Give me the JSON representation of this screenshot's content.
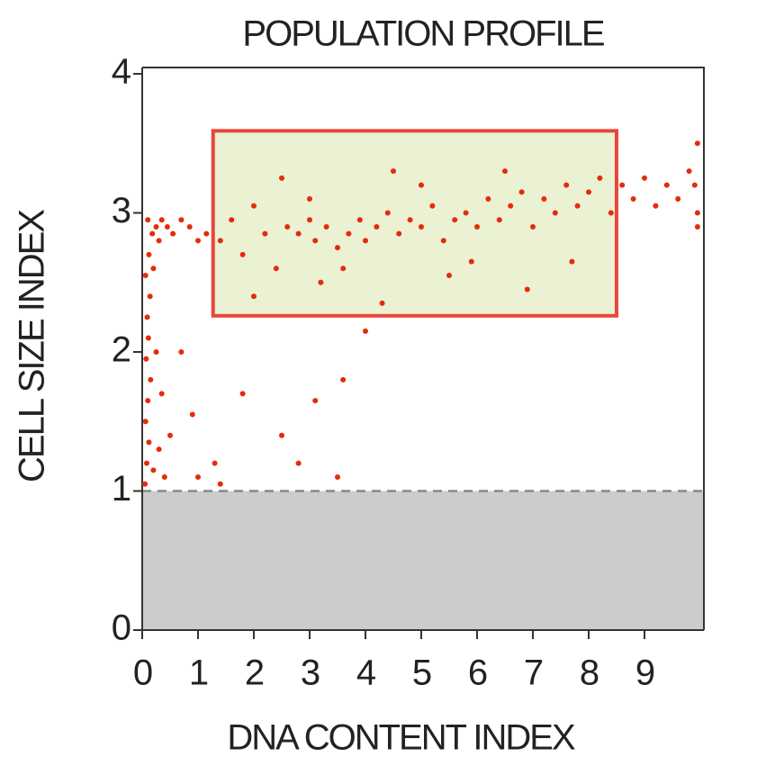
{
  "chart_data": {
    "type": "scatter",
    "title": "POPULATION PROFILE",
    "x_label": "DNA CONTENT INDEX",
    "y_label": "CELL SIZE INDEX",
    "xlim": [
      0,
      10
    ],
    "ylim": [
      0,
      4
    ],
    "xticks": [
      0,
      1,
      2,
      3,
      4,
      5,
      6,
      7,
      8,
      9
    ],
    "yticks": [
      0,
      1,
      2,
      3,
      4
    ],
    "series": [
      {
        "color": "#e62a0a",
        "x": [
          0.05,
          0.08,
          0.12,
          0.06,
          0.1,
          0.15,
          0.07,
          0.11,
          0.09,
          0.14,
          0.06,
          0.12,
          0.18,
          0.1,
          0.25,
          0.3,
          0.2,
          0.35,
          0.45,
          0.55,
          0.7,
          0.85,
          1.0,
          1.15,
          0.3,
          0.4,
          0.25,
          0.35,
          0.5,
          0.2,
          1.0,
          1.3,
          1.8,
          2.5,
          3.1,
          3.6,
          4.0,
          2.8,
          3.5,
          1.4,
          0.7,
          0.9,
          1.4,
          1.6,
          1.8,
          2.0,
          2.2,
          2.4,
          2.6,
          2.8,
          3.0,
          3.1,
          3.3,
          3.5,
          3.7,
          3.9,
          4.0,
          4.2,
          4.4,
          4.6,
          4.8,
          5.0,
          5.2,
          5.4,
          5.6,
          5.8,
          6.0,
          6.2,
          6.4,
          6.6,
          6.8,
          7.0,
          7.2,
          7.4,
          7.6,
          7.8,
          8.0,
          8.2,
          8.4,
          2.0,
          3.2,
          4.3,
          5.5,
          6.9,
          2.5,
          4.5,
          6.5,
          3.0,
          5.0,
          7.7,
          3.6,
          5.9,
          8.6,
          8.8,
          9.0,
          9.2,
          9.4,
          9.6,
          9.8,
          9.95,
          9.95,
          9.95,
          9.9
        ],
        "y": [
          1.05,
          1.2,
          1.35,
          1.5,
          1.65,
          1.8,
          1.95,
          2.1,
          2.25,
          2.4,
          2.55,
          2.7,
          2.85,
          2.95,
          2.9,
          2.8,
          2.6,
          2.95,
          2.9,
          2.85,
          2.95,
          2.9,
          2.8,
          2.85,
          1.3,
          1.1,
          2.0,
          1.7,
          1.4,
          1.15,
          1.1,
          1.2,
          1.7,
          1.4,
          1.65,
          1.8,
          2.15,
          1.2,
          1.1,
          1.05,
          2.0,
          1.55,
          2.8,
          2.95,
          2.7,
          3.05,
          2.85,
          2.6,
          2.9,
          2.85,
          2.95,
          2.8,
          2.9,
          2.75,
          2.85,
          2.95,
          2.8,
          2.9,
          3.0,
          2.85,
          2.95,
          2.9,
          3.05,
          2.8,
          2.95,
          3.0,
          2.9,
          3.1,
          2.95,
          3.05,
          3.15,
          2.9,
          3.1,
          3.0,
          3.2,
          3.05,
          3.15,
          3.25,
          3.0,
          2.4,
          2.5,
          2.35,
          2.55,
          2.45,
          3.25,
          3.3,
          3.3,
          3.1,
          3.2,
          2.65,
          2.6,
          2.65,
          3.2,
          3.1,
          3.25,
          3.05,
          3.2,
          3.1,
          3.3,
          3.5,
          3.0,
          2.9,
          3.2
        ]
      }
    ],
    "gate": {
      "x": [
        1.27,
        8.5
      ],
      "y": [
        2.26,
        3.59
      ],
      "fill": "#eaf2d3",
      "stroke": "#e8473a"
    },
    "threshold": {
      "y": 1,
      "fill": "#cccccc",
      "line": "#888888"
    }
  }
}
